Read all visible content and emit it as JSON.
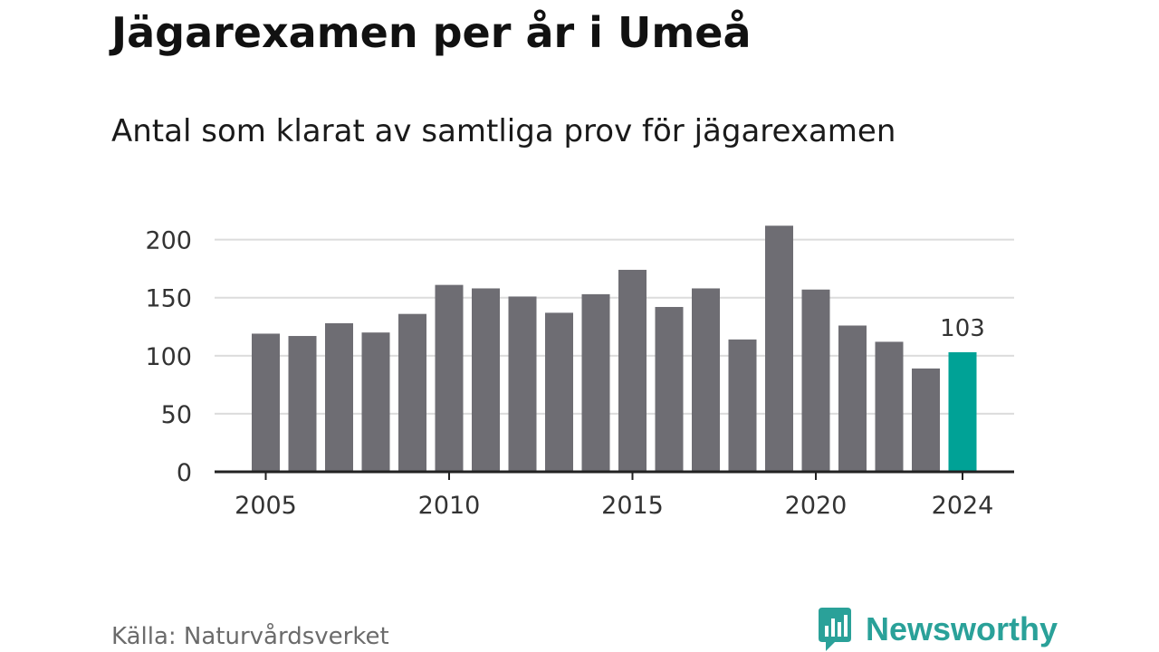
{
  "title": "Jägarexamen per år i Umeå",
  "subtitle": "Antal som klarat av samtliga prov för jägarexamen",
  "source": "Källa: Naturvårdsverket",
  "brand": {
    "name": "Newsworthy",
    "icon": "newsworthy-logo-icon",
    "color": "#2aa199"
  },
  "chart_data": {
    "type": "bar",
    "categories": [
      2005,
      2006,
      2007,
      2008,
      2009,
      2010,
      2011,
      2012,
      2013,
      2014,
      2015,
      2016,
      2017,
      2018,
      2019,
      2020,
      2021,
      2022,
      2023,
      2024
    ],
    "values": [
      119,
      117,
      128,
      120,
      136,
      161,
      158,
      151,
      137,
      153,
      174,
      142,
      158,
      114,
      212,
      157,
      126,
      112,
      89,
      103
    ],
    "x_tick_labels": [
      "2005",
      "2010",
      "2015",
      "2020",
      "2024"
    ],
    "y_ticks": [
      "0",
      "50",
      "100",
      "150",
      "200"
    ],
    "ylim": [
      0,
      220
    ],
    "grid": true,
    "bar_color": "#6e6d73",
    "highlight": {
      "category": 2024,
      "color": "#00a296",
      "label": "103"
    }
  }
}
